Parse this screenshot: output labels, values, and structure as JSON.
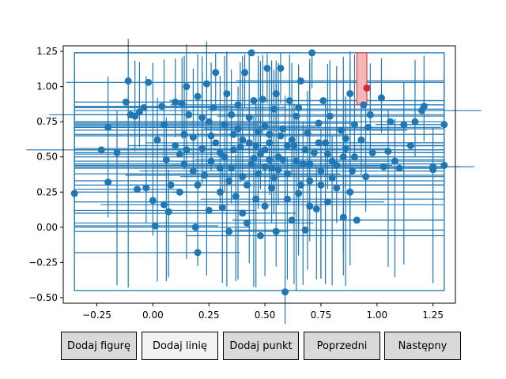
{
  "toolbar": {
    "buttons": [
      {
        "label": "Dodaj figurę",
        "active": false
      },
      {
        "label": "Dodaj linię",
        "active": true
      },
      {
        "label": "Dodaj punkt",
        "active": false
      },
      {
        "label": "Poprzedni",
        "active": false
      },
      {
        "label": "Następny",
        "active": false
      }
    ]
  },
  "colors": {
    "series": "#1f77b4",
    "highlight_point": "#d62728",
    "highlight_fill": "#f4b6b6",
    "button_face": "#d9d9d9",
    "button_active": "#f2f2f2"
  },
  "chart_data": {
    "type": "scatter",
    "title": "",
    "xlabel": "",
    "ylabel": "",
    "xlim": [
      -0.4,
      1.35
    ],
    "ylim": [
      -0.54,
      1.29
    ],
    "xticks": [
      -0.25,
      0.0,
      0.25,
      0.5,
      0.75,
      1.0,
      1.25
    ],
    "yticks": [
      -0.5,
      -0.25,
      0.0,
      0.25,
      0.5,
      0.75,
      1.0,
      1.25
    ],
    "xtick_labels": [
      "−0.25",
      "0.00",
      "0.25",
      "0.50",
      "0.75",
      "1.00",
      "1.25"
    ],
    "ytick_labels": [
      "−0.50",
      "−0.25",
      "0.00",
      "0.25",
      "0.50",
      "0.75",
      "1.00",
      "1.25"
    ],
    "bounding_box": {
      "x": [
        -0.35,
        1.3
      ],
      "y": [
        -0.45,
        1.24
      ]
    },
    "grid": false,
    "highlighted_rect": {
      "x": [
        0.91,
        0.955
      ],
      "y": [
        0.87,
        1.24
      ]
    },
    "highlighted_point": {
      "x": 0.955,
      "y": 0.99
    },
    "points": [
      [
        -0.35,
        0.24
      ],
      [
        -0.23,
        0.55
      ],
      [
        -0.2,
        0.32
      ],
      [
        -0.2,
        0.71
      ],
      [
        -0.16,
        0.53
      ],
      [
        -0.12,
        0.89
      ],
      [
        -0.11,
        1.04
      ],
      [
        -0.1,
        0.8
      ],
      [
        -0.08,
        0.79
      ],
      [
        -0.07,
        0.27
      ],
      [
        -0.06,
        0.82
      ],
      [
        -0.04,
        0.85
      ],
      [
        -0.03,
        0.28
      ],
      [
        -0.02,
        1.03
      ],
      [
        0.0,
        0.19
      ],
      [
        0.01,
        0.01
      ],
      [
        0.02,
        0.62
      ],
      [
        0.04,
        0.86
      ],
      [
        0.05,
        0.73
      ],
      [
        0.05,
        0.16
      ],
      [
        0.07,
        0.11
      ],
      [
        0.08,
        0.3
      ],
      [
        0.1,
        0.89
      ],
      [
        0.12,
        0.52
      ],
      [
        0.13,
        0.88
      ],
      [
        0.14,
        0.45
      ],
      [
        0.15,
        1.0
      ],
      [
        0.16,
        0.8
      ],
      [
        0.18,
        0.64
      ],
      [
        0.19,
        0.0
      ],
      [
        0.2,
        0.93
      ],
      [
        0.2,
        -0.18
      ],
      [
        0.22,
        0.78
      ],
      [
        0.23,
        0.37
      ],
      [
        0.24,
        1.02
      ],
      [
        0.25,
        0.12
      ],
      [
        0.26,
        0.65
      ],
      [
        0.27,
        0.85
      ],
      [
        0.28,
        1.1
      ],
      [
        0.3,
        0.53
      ],
      [
        0.31,
        0.14
      ],
      [
        0.32,
        0.73
      ],
      [
        0.33,
        0.95
      ],
      [
        0.34,
        -0.03
      ],
      [
        0.35,
        0.42
      ],
      [
        0.36,
        0.66
      ],
      [
        0.37,
        0.22
      ],
      [
        0.38,
        0.87
      ],
      [
        0.39,
        0.57
      ],
      [
        0.4,
        0.36
      ],
      [
        0.41,
        1.1
      ],
      [
        0.42,
        0.03
      ],
      [
        0.43,
        0.78
      ],
      [
        0.44,
        1.24
      ],
      [
        0.45,
        0.49
      ],
      [
        0.46,
        0.2
      ],
      [
        0.47,
        0.68
      ],
      [
        0.48,
        -0.06
      ],
      [
        0.49,
        0.91
      ],
      [
        0.5,
        0.43
      ],
      [
        0.51,
        1.13
      ],
      [
        0.52,
        0.6
      ],
      [
        0.53,
        0.28
      ],
      [
        0.54,
        0.84
      ],
      [
        0.55,
        -0.03
      ],
      [
        0.56,
        0.5
      ],
      [
        0.57,
        1.13
      ],
      [
        0.58,
        0.7
      ],
      [
        0.59,
        -0.46
      ],
      [
        0.6,
        0.38
      ],
      [
        0.61,
        0.9
      ],
      [
        0.62,
        0.05
      ],
      [
        0.63,
        0.58
      ],
      [
        0.64,
        0.79
      ],
      [
        0.65,
        0.24
      ],
      [
        0.66,
        1.04
      ],
      [
        0.67,
        0.45
      ],
      [
        0.68,
        -0.02
      ],
      [
        0.69,
        0.67
      ],
      [
        0.7,
        0.33
      ],
      [
        0.71,
        1.24
      ],
      [
        0.72,
        0.53
      ],
      [
        0.73,
        0.13
      ],
      [
        0.74,
        0.74
      ],
      [
        0.75,
        0.4
      ],
      [
        0.76,
        0.9
      ],
      [
        0.77,
        0.6
      ],
      [
        0.78,
        0.18
      ],
      [
        0.79,
        0.79
      ],
      [
        0.8,
        0.47
      ],
      [
        0.82,
        0.28
      ],
      [
        0.84,
        0.69
      ],
      [
        0.85,
        0.07
      ],
      [
        0.86,
        0.56
      ],
      [
        0.88,
        0.95
      ],
      [
        0.89,
        0.4
      ],
      [
        0.9,
        0.73
      ],
      [
        0.91,
        0.05
      ],
      [
        0.93,
        0.62
      ],
      [
        0.94,
        0.87
      ],
      [
        0.95,
        0.36
      ],
      [
        0.96,
        0.71
      ],
      [
        0.97,
        0.8
      ],
      [
        0.98,
        0.53
      ],
      [
        1.02,
        0.92
      ],
      [
        1.03,
        0.43
      ],
      [
        1.05,
        0.54
      ],
      [
        1.06,
        0.75
      ],
      [
        1.08,
        0.47
      ],
      [
        1.1,
        0.42
      ],
      [
        1.12,
        0.73
      ],
      [
        1.15,
        0.58
      ],
      [
        1.17,
        0.75
      ],
      [
        1.2,
        0.83
      ],
      [
        1.21,
        0.86
      ],
      [
        1.25,
        0.43
      ],
      [
        1.25,
        0.41
      ],
      [
        1.3,
        0.73
      ],
      [
        1.3,
        0.44
      ],
      [
        0.28,
        0.6
      ],
      [
        0.32,
        0.5
      ],
      [
        0.36,
        0.55
      ],
      [
        0.4,
        0.62
      ],
      [
        0.44,
        0.45
      ],
      [
        0.48,
        0.52
      ],
      [
        0.52,
        0.66
      ],
      [
        0.56,
        0.41
      ],
      [
        0.6,
        0.58
      ],
      [
        0.64,
        0.47
      ],
      [
        0.68,
        0.55
      ],
      [
        0.38,
        0.7
      ],
      [
        0.42,
        0.3
      ],
      [
        0.46,
        0.58
      ],
      [
        0.5,
        0.72
      ],
      [
        0.54,
        0.35
      ],
      [
        0.58,
        0.48
      ],
      [
        0.62,
        0.62
      ],
      [
        0.66,
        0.3
      ],
      [
        0.7,
        0.45
      ],
      [
        0.34,
        0.33
      ],
      [
        0.3,
        0.42
      ],
      [
        0.26,
        0.47
      ],
      [
        0.22,
        0.56
      ],
      [
        0.18,
        0.4
      ],
      [
        0.14,
        0.66
      ],
      [
        0.1,
        0.58
      ],
      [
        0.06,
        0.48
      ],
      [
        0.74,
        0.6
      ],
      [
        0.78,
        0.52
      ],
      [
        0.82,
        0.44
      ],
      [
        0.86,
        0.63
      ],
      [
        0.9,
        0.5
      ],
      [
        0.5,
        0.15
      ],
      [
        0.45,
        0.9
      ],
      [
        0.55,
        0.95
      ],
      [
        0.4,
        0.1
      ],
      [
        0.6,
        0.2
      ],
      [
        0.35,
        0.8
      ],
      [
        0.65,
        0.85
      ],
      [
        0.3,
        0.25
      ],
      [
        0.7,
        0.15
      ],
      [
        0.25,
        0.75
      ],
      [
        0.75,
        0.3
      ],
      [
        0.2,
        0.3
      ],
      [
        0.8,
        0.35
      ],
      [
        0.15,
        0.55
      ],
      [
        0.85,
        0.5
      ],
      [
        0.12,
        0.25
      ],
      [
        0.88,
        0.25
      ],
      [
        0.5,
        0.55
      ],
      [
        0.47,
        0.38
      ],
      [
        0.53,
        0.42
      ],
      [
        0.43,
        0.6
      ],
      [
        0.57,
        0.65
      ],
      [
        0.52,
        0.48
      ]
    ]
  }
}
